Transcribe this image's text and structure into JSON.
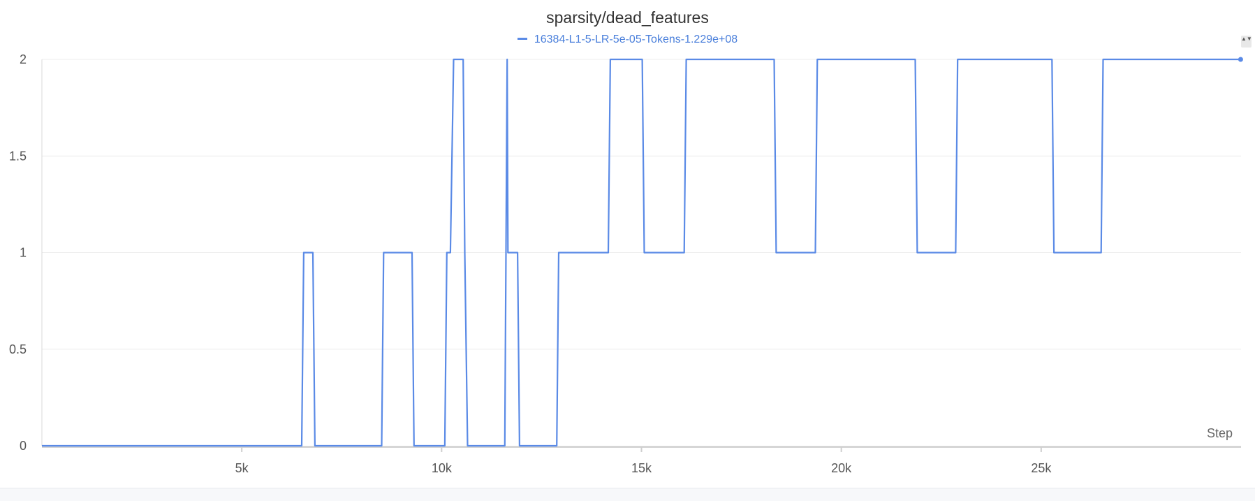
{
  "chart_data": {
    "type": "line",
    "title": "sparsity/dead_features",
    "xlabel": "Step",
    "ylabel": "",
    "xlim": [
      0,
      30000
    ],
    "ylim": [
      0,
      2
    ],
    "x_ticks": [
      5000,
      10000,
      15000,
      20000,
      25000
    ],
    "x_tick_labels": [
      "5k",
      "10k",
      "15k",
      "20k",
      "25k"
    ],
    "y_ticks": [
      0,
      0.5,
      1,
      1.5,
      2
    ],
    "y_tick_labels": [
      "0",
      "0.5",
      "1",
      "1.5",
      "2"
    ],
    "grid": true,
    "legend_position": "top-center",
    "series": [
      {
        "name": "16384-L1-5-LR-5e-05-Tokens-1.229e+08",
        "color": "#5a8ae6",
        "x": [
          0,
          6500,
          6550,
          6780,
          6830,
          8500,
          8550,
          9260,
          9310,
          10080,
          10130,
          10220,
          10300,
          10540,
          10580,
          10650,
          11580,
          11640,
          11660,
          11900,
          11950,
          12880,
          12930,
          14170,
          14220,
          15020,
          15070,
          16070,
          16120,
          18320,
          18370,
          19350,
          19400,
          21850,
          21900,
          22860,
          22910,
          25270,
          25320,
          26500,
          26550,
          29990
        ],
        "values": [
          0,
          0,
          1,
          1,
          0,
          0,
          1,
          1,
          0,
          0,
          1,
          1,
          2,
          2,
          1,
          0,
          0,
          2,
          1,
          1,
          0,
          0,
          1,
          1,
          2,
          2,
          1,
          1,
          2,
          2,
          1,
          1,
          2,
          2,
          1,
          1,
          2,
          2,
          1,
          1,
          2,
          2
        ]
      }
    ]
  },
  "controls": {
    "scroll_icon": "up-down-arrows-icon",
    "scroll_glyph": "▲▼"
  }
}
